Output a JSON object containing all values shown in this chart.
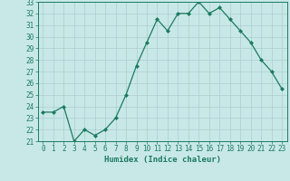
{
  "x": [
    0,
    1,
    2,
    3,
    4,
    5,
    6,
    7,
    8,
    9,
    10,
    11,
    12,
    13,
    14,
    15,
    16,
    17,
    18,
    19,
    20,
    21,
    22,
    23
  ],
  "y": [
    23.5,
    23.5,
    24.0,
    21.0,
    22.0,
    21.5,
    22.0,
    23.0,
    25.0,
    27.5,
    29.5,
    31.5,
    30.5,
    32.0,
    32.0,
    33.0,
    32.0,
    32.5,
    31.5,
    30.5,
    29.5,
    28.0,
    27.0,
    25.5
  ],
  "xlabel": "Humidex (Indice chaleur)",
  "ylim": [
    21,
    33
  ],
  "xlim": [
    -0.5,
    23.5
  ],
  "yticks": [
    21,
    22,
    23,
    24,
    25,
    26,
    27,
    28,
    29,
    30,
    31,
    32,
    33
  ],
  "xticks": [
    0,
    1,
    2,
    3,
    4,
    5,
    6,
    7,
    8,
    9,
    10,
    11,
    12,
    13,
    14,
    15,
    16,
    17,
    18,
    19,
    20,
    21,
    22,
    23
  ],
  "line_color": "#1c7a60",
  "marker": "D",
  "marker_size": 2.0,
  "bg_color": "#c8e8e8",
  "grid_color": "#aacece",
  "font_color": "#1c7a60",
  "xlabel_fontsize": 6.5,
  "tick_fontsize": 5.5
}
